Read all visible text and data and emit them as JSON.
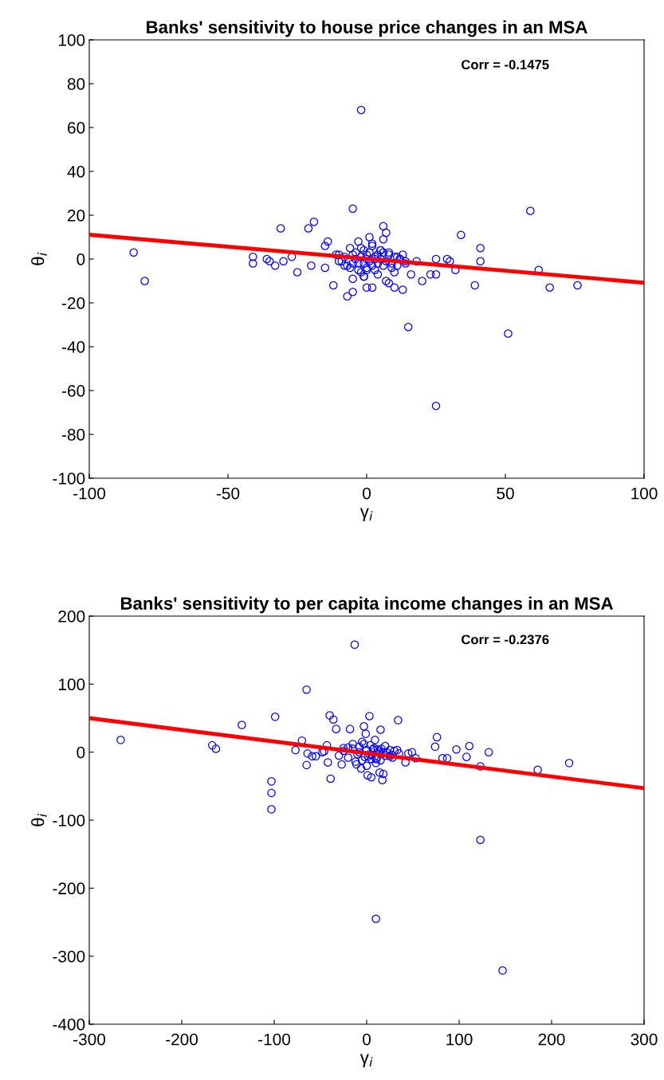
{
  "chart_data": [
    {
      "type": "scatter",
      "title": "Banks' sensitivity to house price changes in an MSA",
      "xlabel": "γ$_{i}$",
      "ylabel": "θ$_{i}$",
      "xlim": [
        -100,
        100
      ],
      "ylim": [
        -100,
        100
      ],
      "xticks": [
        -100,
        -50,
        0,
        50,
        100
      ],
      "yticks": [
        -100,
        -80,
        -60,
        -40,
        -20,
        0,
        20,
        40,
        60,
        80,
        100
      ],
      "grid": false,
      "annotations": [
        "Corr = -0.1475"
      ],
      "series": [
        {
          "marker": "circle",
          "color": "#0000ff",
          "x": [
            -84,
            -80,
            -2,
            -5,
            -31,
            -21,
            -19,
            59,
            34,
            41,
            41,
            62,
            66,
            76,
            39,
            51,
            15,
            25,
            25,
            29,
            30,
            32,
            23,
            25,
            20,
            -41,
            -41,
            -36,
            -35,
            -33,
            -30,
            -27,
            -25,
            -20,
            -15,
            -14,
            -15,
            -12,
            -7,
            -5,
            6,
            7,
            7,
            10,
            13,
            16,
            18,
            8,
            -5,
            0,
            -1,
            2,
            -10,
            -9,
            -8,
            -7,
            -6,
            -5,
            -4,
            -3,
            -3,
            -2,
            -2,
            -1,
            -1,
            0,
            0,
            0,
            1,
            1,
            2,
            2,
            3,
            3,
            4,
            4,
            5,
            5,
            6,
            6,
            7,
            8,
            9,
            10,
            11,
            12,
            13,
            14,
            -6,
            -4,
            -2,
            0,
            2,
            4,
            6,
            8,
            10,
            3,
            -3,
            1,
            -1,
            5,
            -5,
            9,
            -8,
            11,
            14,
            -11,
            12,
            -10
          ],
          "values": [
            3,
            -10,
            68,
            23,
            14,
            14,
            17,
            22,
            11,
            5,
            -1,
            -5,
            -13,
            -12,
            -12,
            -34,
            -31,
            -67,
            0,
            0,
            -1,
            -5,
            -7,
            -7,
            -10,
            1,
            -2,
            0,
            -1,
            -3,
            -1,
            1,
            -6,
            -3,
            6,
            8,
            -4,
            -12,
            -17,
            -15,
            15,
            12,
            -10,
            -13,
            -14,
            -7,
            -1,
            -11,
            -9,
            -13,
            -8,
            -13,
            2,
            -1,
            1,
            -3,
            5,
            -2,
            3,
            -5,
            8,
            1,
            -6,
            4,
            -2,
            0,
            2,
            -4,
            3,
            -1,
            6,
            -3,
            1,
            -5,
            2,
            -2,
            4,
            0,
            -3,
            3,
            -1,
            2,
            -2,
            1,
            -3,
            0,
            2,
            -1,
            -4,
            0,
            5,
            -5,
            7,
            -7,
            9,
            3,
            -6,
            0,
            -2,
            10,
            -8,
            4,
            2,
            -4,
            -3,
            1,
            -2,
            2,
            0,
            -1
          ]
        },
        {
          "type": "line",
          "color": "#ff0000",
          "x": [
            -100,
            100
          ],
          "values": [
            11.1,
            -10.8
          ]
        }
      ]
    },
    {
      "type": "scatter",
      "title": "Banks' sensitivity to per capita income changes in an MSA",
      "xlabel": "γ$_{i}$",
      "ylabel": "θ$_{i}$",
      "xlim": [
        -300,
        300
      ],
      "ylim": [
        -400,
        200
      ],
      "xticks": [
        -300,
        -200,
        -100,
        0,
        100,
        200,
        300
      ],
      "yticks": [
        -400,
        -300,
        -200,
        -100,
        0,
        100,
        200
      ],
      "grid": false,
      "annotations": [
        "Corr = -0.2376"
      ],
      "series": [
        {
          "marker": "circle",
          "color": "#0000ff",
          "x": [
            -266,
            -13,
            -65,
            -135,
            -99,
            -167,
            -163,
            -103,
            -103,
            -103,
            123,
            10,
            147,
            219,
            185,
            123,
            132,
            111,
            97,
            108,
            76,
            74,
            82,
            87,
            53,
            42,
            34,
            3,
            -40,
            -36,
            -33,
            -18,
            -3,
            -1,
            15,
            -39,
            17,
            18,
            14,
            1,
            5,
            -65,
            -27,
            -42,
            -77,
            -70,
            -64,
            -59,
            -55,
            -48,
            -46,
            -43,
            49,
            35,
            45,
            -6,
            -11,
            -30,
            -25,
            -20,
            -15,
            -10,
            -8,
            -5,
            -3,
            0,
            2,
            4,
            6,
            8,
            10,
            12,
            15,
            18,
            20,
            25,
            28,
            30,
            -20,
            -12,
            -5,
            0,
            5,
            10,
            15,
            20,
            25,
            -15,
            -8,
            3,
            9,
            13,
            22,
            -2,
            7,
            11,
            16,
            -25,
            27,
            33
          ],
          "values": [
            18,
            158,
            92,
            40,
            52,
            10,
            5,
            -43,
            -60,
            -84,
            -129,
            -245,
            -321,
            -16,
            -26,
            -21,
            0,
            9,
            4,
            -7,
            22,
            8,
            -9,
            -9,
            -9,
            -15,
            47,
            53,
            54,
            48,
            34,
            34,
            38,
            27,
            33,
            -39,
            -41,
            -32,
            -30,
            -34,
            -37,
            -19,
            -18,
            -15,
            3,
            17,
            -2,
            -6,
            -6,
            0,
            1,
            10,
            0,
            -2,
            -2,
            -24,
            -18,
            -5,
            2,
            -8,
            5,
            -3,
            8,
            -12,
            12,
            3,
            -6,
            10,
            -4,
            6,
            -10,
            4,
            -2,
            0,
            -5,
            3,
            -8,
            2,
            7,
            -14,
            15,
            -20,
            -10,
            -16,
            -12,
            9,
            -6,
            12,
            0,
            -3,
            18,
            1,
            -1,
            -7,
            4,
            -9,
            5,
            6,
            -4,
            3
          ]
        },
        {
          "type": "line",
          "color": "#ff0000",
          "x": [
            -300,
            300
          ],
          "values": [
            50,
            -53
          ]
        }
      ]
    }
  ]
}
